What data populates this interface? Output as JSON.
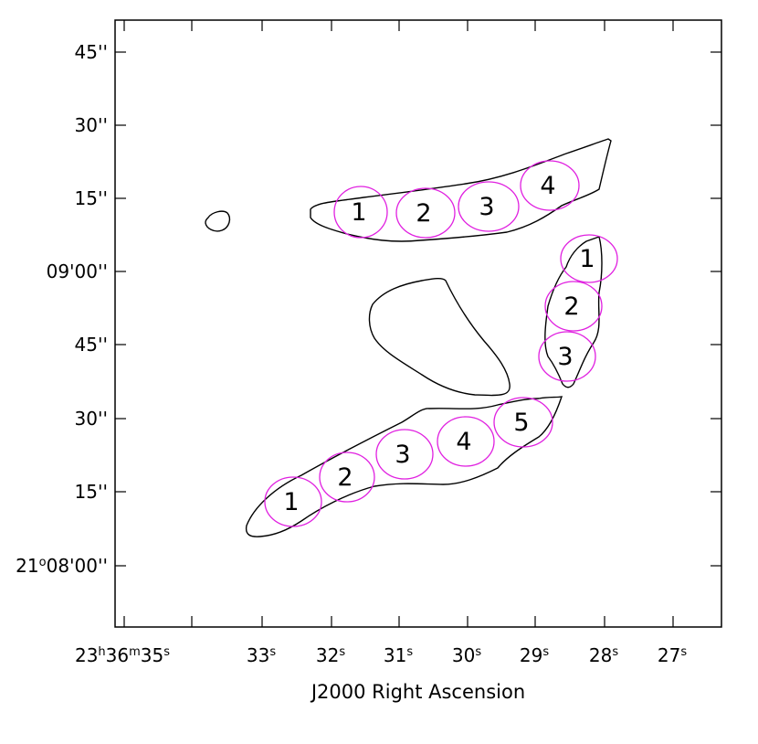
{
  "figure": {
    "xlabel": "J2000 Right Ascension",
    "ylabel": "",
    "x_ticks": [
      {
        "h": "23",
        "m": "36",
        "s": "35"
      },
      {
        "s": "33"
      },
      {
        "s": "32"
      },
      {
        "s": "31"
      },
      {
        "s": "30"
      },
      {
        "s": "29"
      },
      {
        "s": "28"
      },
      {
        "s": "27"
      }
    ],
    "y_ticks": [
      {
        "text": "45''"
      },
      {
        "text": "30''"
      },
      {
        "text": "15''"
      },
      {
        "text": "09'00''"
      },
      {
        "text": "45''"
      },
      {
        "text": "30''"
      },
      {
        "text": "15''"
      },
      {
        "text": "21",
        "deg": "o",
        "rest": "08'00''"
      }
    ],
    "colors": {
      "axes": "#000000",
      "contour": "#000000",
      "region_circle": "#e020e0",
      "label_text": "#000000"
    }
  },
  "contours": [
    {
      "name": "small-blob"
    },
    {
      "name": "upper-ridge"
    },
    {
      "name": "central-blob"
    },
    {
      "name": "right-ridge"
    },
    {
      "name": "lower-ridge"
    }
  ],
  "region_groups": [
    {
      "name": "upper",
      "labels": [
        "1",
        "2",
        "3",
        "4"
      ]
    },
    {
      "name": "right",
      "labels": [
        "1",
        "2",
        "3"
      ]
    },
    {
      "name": "lower",
      "labels": [
        "1",
        "2",
        "3",
        "4",
        "5"
      ]
    }
  ]
}
